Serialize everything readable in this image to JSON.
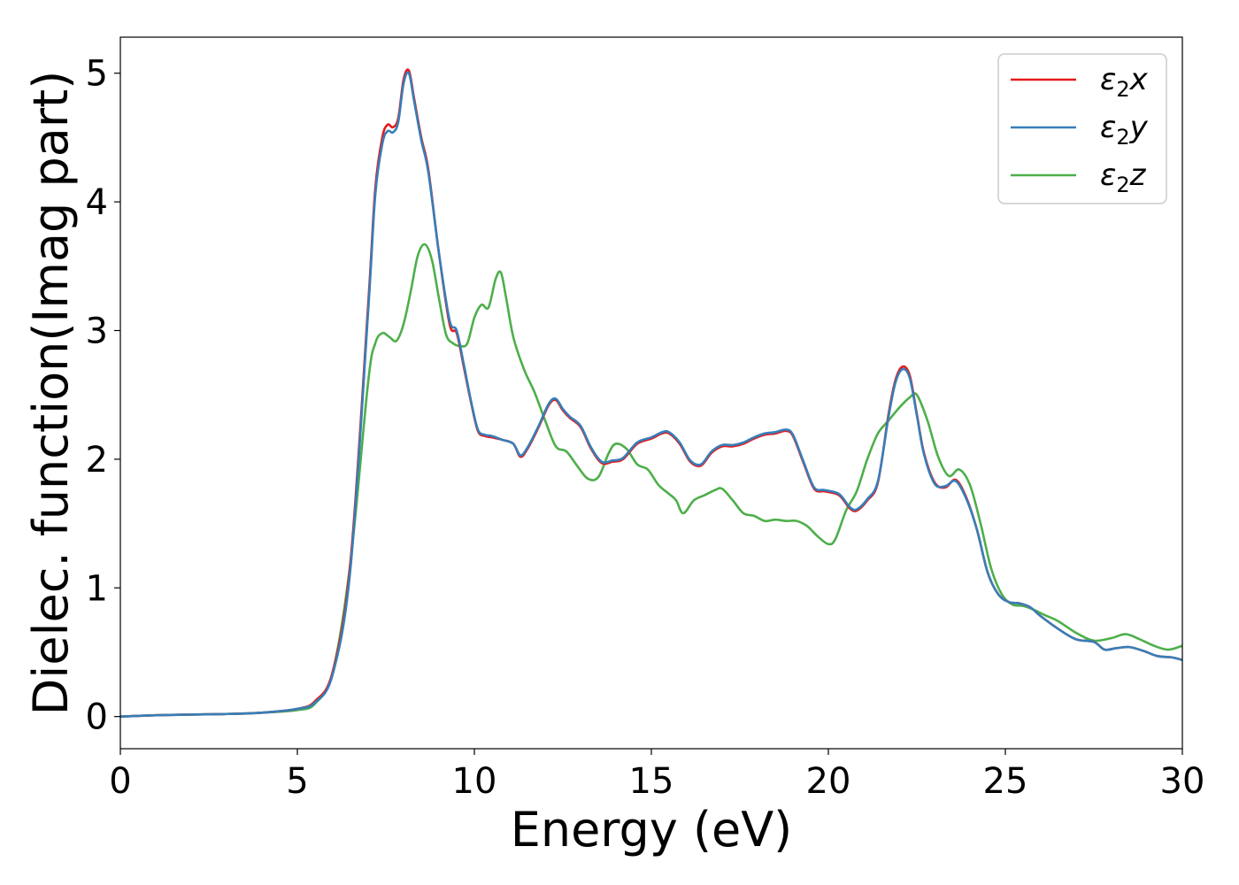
{
  "chart_data": {
    "type": "line",
    "title": "",
    "xlabel": "Energy (eV)",
    "ylabel": "Dielec. function(Imag part)",
    "xlim": [
      0,
      30
    ],
    "ylim": [
      -0.25,
      5.28
    ],
    "xticks": [
      "0",
      "5",
      "10",
      "15",
      "20",
      "25",
      "30"
    ],
    "yticks": [
      "0",
      "1",
      "2",
      "3",
      "4",
      "5"
    ],
    "grid": false,
    "legend_position": "top-right",
    "series": [
      {
        "name": "ε2x",
        "legend_base": "ε",
        "legend_sub": "2",
        "legend_var": "x",
        "color": "#e41a1c",
        "x": [
          0,
          1,
          2,
          3,
          4,
          5,
          5.5,
          6,
          6.5,
          7,
          7.2,
          7.4,
          7.55,
          7.7,
          7.85,
          8.0,
          8.15,
          8.3,
          8.5,
          8.7,
          9.0,
          9.3,
          9.5,
          9.7,
          9.9,
          10.1,
          10.3,
          10.5,
          10.8,
          11.1,
          11.3,
          11.5,
          11.8,
          12.1,
          12.3,
          12.5,
          12.7,
          13.0,
          13.3,
          13.6,
          13.9,
          14.2,
          14.6,
          15.0,
          15.3,
          15.5,
          15.8,
          16.1,
          16.4,
          16.7,
          17.0,
          17.3,
          17.6,
          17.9,
          18.2,
          18.5,
          18.8,
          19.0,
          19.3,
          19.6,
          19.9,
          20.3,
          20.6,
          20.8,
          21.1,
          21.4,
          21.7,
          21.9,
          22.1,
          22.3,
          22.5,
          22.7,
          23.0,
          23.3,
          23.6,
          23.9,
          24.2,
          24.5,
          24.8,
          25.1,
          25.4,
          25.7,
          26.0,
          26.5,
          27.0,
          27.5,
          27.8,
          28.1,
          28.5,
          28.9,
          29.3,
          29.7,
          30.0
        ],
        "y": [
          0,
          0.01,
          0.015,
          0.02,
          0.03,
          0.06,
          0.12,
          0.35,
          1.2,
          3.2,
          4.1,
          4.5,
          4.6,
          4.58,
          4.65,
          4.95,
          5.02,
          4.8,
          4.5,
          4.25,
          3.6,
          3.05,
          2.98,
          2.72,
          2.45,
          2.22,
          2.18,
          2.17,
          2.15,
          2.12,
          2.02,
          2.08,
          2.24,
          2.42,
          2.46,
          2.38,
          2.32,
          2.25,
          2.08,
          1.97,
          1.98,
          2.0,
          2.12,
          2.16,
          2.2,
          2.2,
          2.12,
          1.98,
          1.95,
          2.05,
          2.1,
          2.1,
          2.12,
          2.16,
          2.19,
          2.2,
          2.22,
          2.18,
          1.97,
          1.77,
          1.75,
          1.72,
          1.62,
          1.6,
          1.68,
          1.82,
          2.35,
          2.62,
          2.72,
          2.65,
          2.35,
          2.05,
          1.82,
          1.78,
          1.84,
          1.7,
          1.45,
          1.12,
          0.95,
          0.89,
          0.88,
          0.85,
          0.78,
          0.68,
          0.6,
          0.58,
          0.52,
          0.53,
          0.54,
          0.51,
          0.47,
          0.46,
          0.44
        ]
      },
      {
        "name": "ε2y",
        "legend_base": "ε",
        "legend_sub": "2",
        "legend_var": "y",
        "color": "#377eb8",
        "x": [
          0,
          1,
          2,
          3,
          4,
          5,
          5.5,
          6,
          6.5,
          7,
          7.2,
          7.4,
          7.55,
          7.7,
          7.85,
          8.0,
          8.15,
          8.3,
          8.5,
          8.7,
          9.0,
          9.3,
          9.5,
          9.7,
          9.9,
          10.1,
          10.3,
          10.5,
          10.8,
          11.1,
          11.3,
          11.5,
          11.8,
          12.1,
          12.3,
          12.5,
          12.7,
          13.0,
          13.3,
          13.6,
          13.9,
          14.2,
          14.6,
          15.0,
          15.3,
          15.5,
          15.8,
          16.1,
          16.4,
          16.7,
          17.0,
          17.3,
          17.6,
          17.9,
          18.2,
          18.5,
          18.8,
          19.0,
          19.3,
          19.6,
          19.9,
          20.3,
          20.6,
          20.8,
          21.1,
          21.4,
          21.7,
          21.9,
          22.1,
          22.3,
          22.5,
          22.7,
          23.0,
          23.3,
          23.6,
          23.9,
          24.2,
          24.5,
          24.8,
          25.1,
          25.4,
          25.7,
          26.0,
          26.5,
          27.0,
          27.5,
          27.8,
          28.1,
          28.5,
          28.9,
          29.3,
          29.7,
          30.0
        ],
        "y": [
          0,
          0.01,
          0.015,
          0.02,
          0.03,
          0.06,
          0.11,
          0.33,
          1.15,
          3.15,
          4.05,
          4.45,
          4.55,
          4.54,
          4.62,
          4.92,
          5.0,
          4.78,
          4.48,
          4.23,
          3.6,
          3.08,
          3.0,
          2.74,
          2.46,
          2.23,
          2.19,
          2.18,
          2.15,
          2.12,
          2.03,
          2.09,
          2.25,
          2.43,
          2.47,
          2.39,
          2.33,
          2.26,
          2.09,
          1.98,
          1.99,
          2.01,
          2.13,
          2.17,
          2.21,
          2.21,
          2.13,
          1.99,
          1.96,
          2.06,
          2.11,
          2.11,
          2.13,
          2.17,
          2.2,
          2.21,
          2.23,
          2.19,
          1.98,
          1.78,
          1.76,
          1.73,
          1.63,
          1.61,
          1.69,
          1.83,
          2.33,
          2.6,
          2.7,
          2.63,
          2.34,
          2.04,
          1.81,
          1.79,
          1.83,
          1.69,
          1.45,
          1.12,
          0.95,
          0.89,
          0.88,
          0.85,
          0.78,
          0.68,
          0.6,
          0.58,
          0.52,
          0.53,
          0.54,
          0.51,
          0.47,
          0.46,
          0.44
        ]
      },
      {
        "name": "ε2z",
        "legend_base": "ε",
        "legend_sub": "2",
        "legend_var": "z",
        "color": "#4daf4a",
        "x": [
          0,
          1,
          2,
          3,
          4,
          5,
          5.5,
          6,
          6.5,
          7,
          7.2,
          7.4,
          7.6,
          7.8,
          8.0,
          8.2,
          8.4,
          8.6,
          8.8,
          9.0,
          9.2,
          9.4,
          9.6,
          9.8,
          10.0,
          10.2,
          10.4,
          10.6,
          10.75,
          10.9,
          11.1,
          11.4,
          11.7,
          12.0,
          12.3,
          12.6,
          12.9,
          13.2,
          13.5,
          13.8,
          14.0,
          14.3,
          14.6,
          14.9,
          15.2,
          15.5,
          15.7,
          15.9,
          16.2,
          16.5,
          16.8,
          17.0,
          17.3,
          17.6,
          17.9,
          18.2,
          18.5,
          18.8,
          19.1,
          19.4,
          19.7,
          20.0,
          20.2,
          20.5,
          20.8,
          21.1,
          21.4,
          21.7,
          22.0,
          22.3,
          22.5,
          22.8,
          23.1,
          23.4,
          23.7,
          24.0,
          24.3,
          24.6,
          24.9,
          25.2,
          25.5,
          25.8,
          26.1,
          26.5,
          27.0,
          27.5,
          28.0,
          28.4,
          28.8,
          29.2,
          29.6,
          30.0
        ],
        "y": [
          0,
          0.01,
          0.015,
          0.02,
          0.03,
          0.05,
          0.1,
          0.35,
          1.2,
          2.6,
          2.9,
          2.98,
          2.95,
          2.92,
          3.05,
          3.3,
          3.58,
          3.67,
          3.55,
          3.25,
          2.97,
          2.9,
          2.88,
          2.9,
          3.1,
          3.2,
          3.18,
          3.4,
          3.45,
          3.25,
          2.95,
          2.7,
          2.52,
          2.3,
          2.1,
          2.06,
          1.95,
          1.85,
          1.86,
          2.05,
          2.12,
          2.08,
          1.96,
          1.92,
          1.8,
          1.73,
          1.68,
          1.58,
          1.68,
          1.72,
          1.76,
          1.77,
          1.68,
          1.58,
          1.56,
          1.52,
          1.53,
          1.52,
          1.52,
          1.48,
          1.4,
          1.34,
          1.38,
          1.6,
          1.75,
          2.0,
          2.2,
          2.3,
          2.4,
          2.48,
          2.5,
          2.3,
          2.02,
          1.87,
          1.92,
          1.8,
          1.5,
          1.15,
          0.95,
          0.87,
          0.86,
          0.83,
          0.79,
          0.74,
          0.65,
          0.59,
          0.61,
          0.64,
          0.6,
          0.55,
          0.52,
          0.55
        ]
      }
    ]
  }
}
